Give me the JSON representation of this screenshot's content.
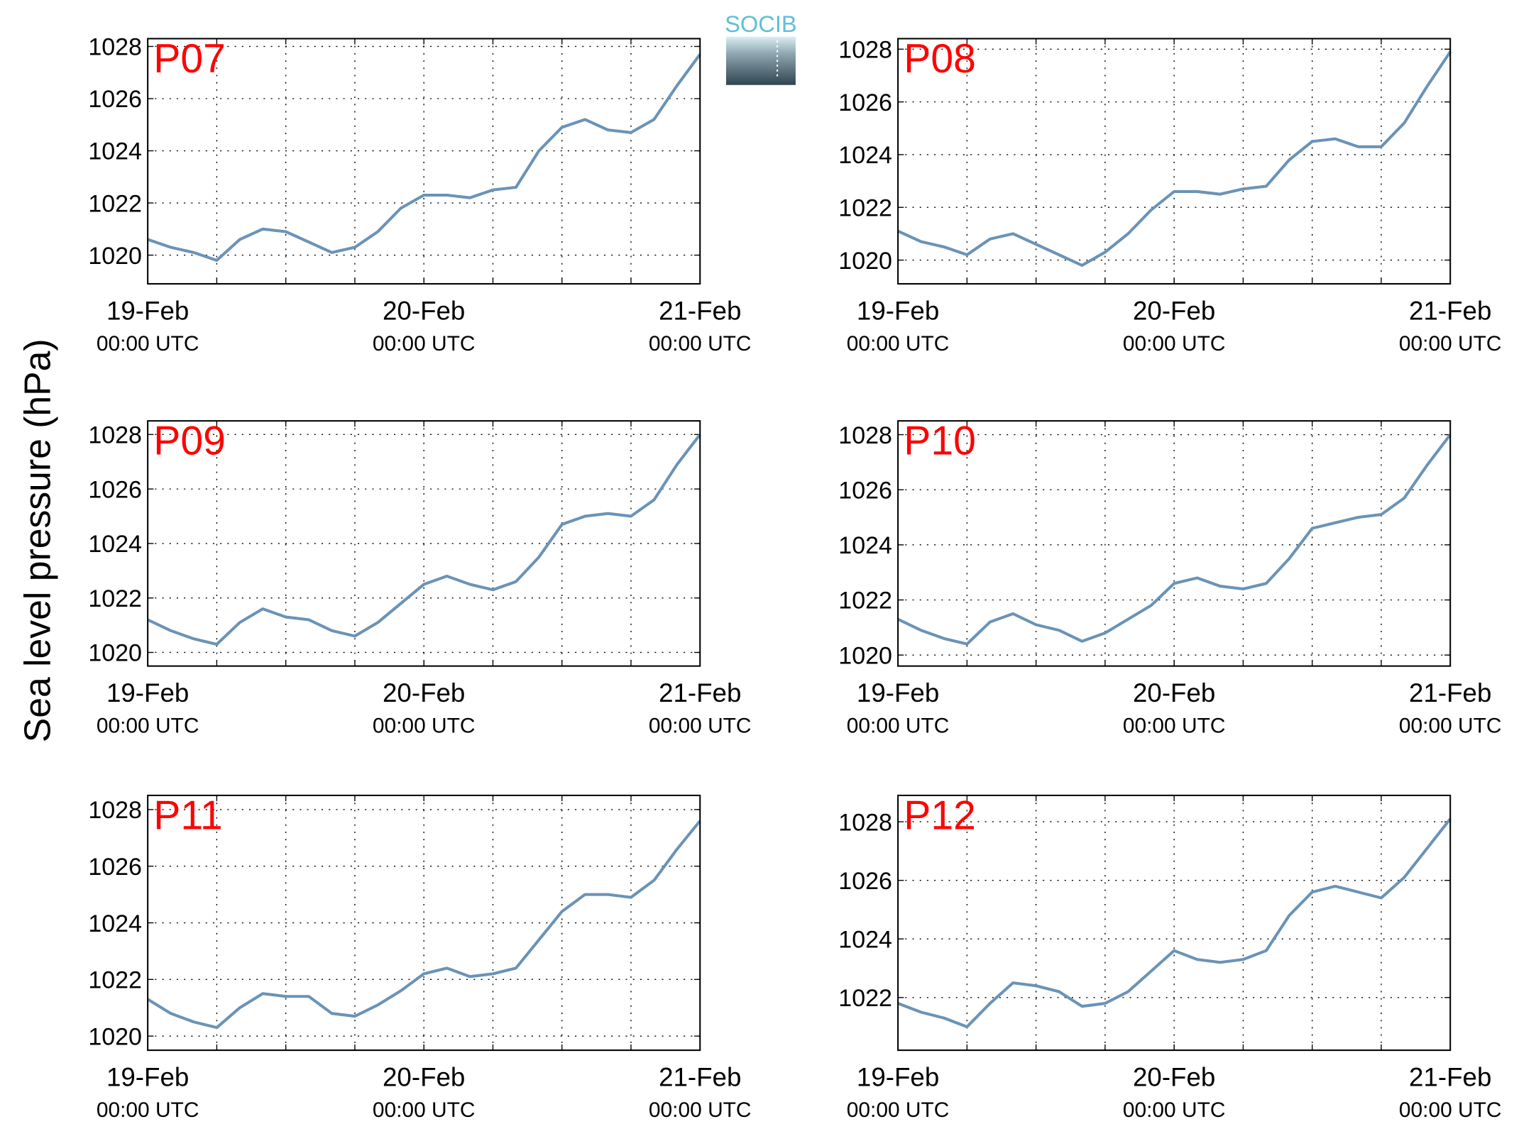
{
  "ylabel": "Sea level pressure (hPa)",
  "logo": "SOCIB",
  "chart_data": [
    {
      "type": "line",
      "title": "P07",
      "x": [
        0,
        2,
        4,
        6,
        8,
        10,
        12,
        14,
        16,
        18,
        20,
        22,
        24,
        26,
        28,
        30,
        32,
        34,
        36,
        38,
        40,
        42,
        44,
        46,
        48
      ],
      "series": [
        {
          "color": "#6a93b6",
          "values": [
            1020.6,
            1020.3,
            1020.1,
            1019.8,
            1020.6,
            1021.0,
            1020.9,
            1020.5,
            1020.1,
            1020.3,
            1020.9,
            1021.8,
            1022.3,
            1022.3,
            1022.2,
            1022.5,
            1022.6,
            1024.0,
            1024.9,
            1025.2,
            1024.8,
            1024.7,
            1025.2,
            1026.5,
            1027.7
          ]
        }
      ],
      "xlim": [
        0,
        48
      ],
      "xticks": [
        {
          "value": 0,
          "label": "19-Feb"
        },
        {
          "value": 24,
          "label": "20-Feb"
        },
        {
          "value": 48,
          "label": "21-Feb"
        }
      ],
      "xtick_times": [
        "00:00 UTC",
        "00:00 UTC",
        "00:00 UTC"
      ],
      "xgrid_values": [
        6,
        12,
        18,
        24,
        30,
        36,
        42
      ],
      "ylim": [
        1018.9,
        1028.3
      ],
      "yticks": [
        1020,
        1022,
        1024,
        1026,
        1028
      ],
      "grid": true
    },
    {
      "type": "line",
      "title": "P08",
      "x": [
        0,
        2,
        4,
        6,
        8,
        10,
        12,
        14,
        16,
        18,
        20,
        22,
        24,
        26,
        28,
        30,
        32,
        34,
        36,
        38,
        40,
        42,
        44,
        46,
        48
      ],
      "series": [
        {
          "color": "#6a93b6",
          "values": [
            1021.1,
            1020.7,
            1020.5,
            1020.2,
            1020.8,
            1021.0,
            1020.6,
            1020.2,
            1019.8,
            1020.3,
            1021.0,
            1021.9,
            1022.6,
            1022.6,
            1022.5,
            1022.7,
            1022.8,
            1023.8,
            1024.5,
            1024.6,
            1024.3,
            1024.3,
            1025.2,
            1026.6,
            1027.9
          ]
        }
      ],
      "xlim": [
        0,
        48
      ],
      "xticks": [
        {
          "value": 0,
          "label": "19-Feb"
        },
        {
          "value": 24,
          "label": "20-Feb"
        },
        {
          "value": 48,
          "label": "21-Feb"
        }
      ],
      "xtick_times": [
        "00:00 UTC",
        "00:00 UTC",
        "00:00 UTC"
      ],
      "xgrid_values": [
        6,
        12,
        18,
        24,
        30,
        36,
        42
      ],
      "ylim": [
        1019.1,
        1028.4
      ],
      "yticks": [
        1020,
        1022,
        1024,
        1026,
        1028
      ],
      "grid": true
    },
    {
      "type": "line",
      "title": "P09",
      "x": [
        0,
        2,
        4,
        6,
        8,
        10,
        12,
        14,
        16,
        18,
        20,
        22,
        24,
        26,
        28,
        30,
        32,
        34,
        36,
        38,
        40,
        42,
        44,
        46,
        48
      ],
      "series": [
        {
          "color": "#6a93b6",
          "values": [
            1021.2,
            1020.8,
            1020.5,
            1020.3,
            1021.1,
            1021.6,
            1021.3,
            1021.2,
            1020.8,
            1020.6,
            1021.1,
            1021.8,
            1022.5,
            1022.8,
            1022.5,
            1022.3,
            1022.6,
            1023.5,
            1024.7,
            1025.0,
            1025.1,
            1025.0,
            1025.6,
            1026.9,
            1028.0
          ]
        }
      ],
      "xlim": [
        0,
        48
      ],
      "xticks": [
        {
          "value": 0,
          "label": "19-Feb"
        },
        {
          "value": 24,
          "label": "20-Feb"
        },
        {
          "value": 48,
          "label": "21-Feb"
        }
      ],
      "xtick_times": [
        "00:00 UTC",
        "00:00 UTC",
        "00:00 UTC"
      ],
      "xgrid_values": [
        6,
        12,
        18,
        24,
        30,
        36,
        42
      ],
      "ylim": [
        1019.5,
        1028.5
      ],
      "yticks": [
        1020,
        1022,
        1024,
        1026,
        1028
      ],
      "grid": true
    },
    {
      "type": "line",
      "title": "P10",
      "x": [
        0,
        2,
        4,
        6,
        8,
        10,
        12,
        14,
        16,
        18,
        20,
        22,
        24,
        26,
        28,
        30,
        32,
        34,
        36,
        38,
        40,
        42,
        44,
        46,
        48
      ],
      "series": [
        {
          "color": "#6a93b6",
          "values": [
            1021.3,
            1020.9,
            1020.6,
            1020.4,
            1021.2,
            1021.5,
            1021.1,
            1020.9,
            1020.5,
            1020.8,
            1021.3,
            1021.8,
            1022.6,
            1022.8,
            1022.5,
            1022.4,
            1022.6,
            1023.5,
            1024.6,
            1024.8,
            1025.0,
            1025.1,
            1025.7,
            1026.9,
            1028.0
          ]
        }
      ],
      "xlim": [
        0,
        48
      ],
      "xticks": [
        {
          "value": 0,
          "label": "19-Feb"
        },
        {
          "value": 24,
          "label": "20-Feb"
        },
        {
          "value": 48,
          "label": "21-Feb"
        }
      ],
      "xtick_times": [
        "00:00 UTC",
        "00:00 UTC",
        "00:00 UTC"
      ],
      "xgrid_values": [
        6,
        12,
        18,
        24,
        30,
        36,
        42
      ],
      "ylim": [
        1019.6,
        1028.5
      ],
      "yticks": [
        1020,
        1022,
        1024,
        1026,
        1028
      ],
      "grid": true
    },
    {
      "type": "line",
      "title": "P11",
      "x": [
        0,
        2,
        4,
        6,
        8,
        10,
        12,
        14,
        16,
        18,
        20,
        22,
        24,
        26,
        28,
        30,
        32,
        34,
        36,
        38,
        40,
        42,
        44,
        46,
        48
      ],
      "series": [
        {
          "color": "#6a93b6",
          "values": [
            1021.3,
            1020.8,
            1020.5,
            1020.3,
            1021.0,
            1021.5,
            1021.4,
            1021.4,
            1020.8,
            1020.7,
            1021.1,
            1021.6,
            1022.2,
            1022.4,
            1022.1,
            1022.2,
            1022.4,
            1023.4,
            1024.4,
            1025.0,
            1025.0,
            1024.9,
            1025.5,
            1026.6,
            1027.6
          ]
        }
      ],
      "xlim": [
        0,
        48
      ],
      "xticks": [
        {
          "value": 0,
          "label": "19-Feb"
        },
        {
          "value": 24,
          "label": "20-Feb"
        },
        {
          "value": 48,
          "label": "21-Feb"
        }
      ],
      "xtick_times": [
        "00:00 UTC",
        "00:00 UTC",
        "00:00 UTC"
      ],
      "xgrid_values": [
        6,
        12,
        18,
        24,
        30,
        36,
        42
      ],
      "ylim": [
        1019.5,
        1028.5
      ],
      "yticks": [
        1020,
        1022,
        1024,
        1026,
        1028
      ],
      "grid": true
    },
    {
      "type": "line",
      "title": "P12",
      "x": [
        0,
        2,
        4,
        6,
        8,
        10,
        12,
        14,
        16,
        18,
        20,
        22,
        24,
        26,
        28,
        30,
        32,
        34,
        36,
        38,
        40,
        42,
        44,
        46,
        48
      ],
      "series": [
        {
          "color": "#6a93b6",
          "values": [
            1021.8,
            1021.5,
            1021.3,
            1021.0,
            1021.8,
            1022.5,
            1022.4,
            1022.2,
            1021.7,
            1021.8,
            1022.2,
            1022.9,
            1023.6,
            1023.3,
            1023.2,
            1023.3,
            1023.6,
            1024.8,
            1025.6,
            1025.8,
            1025.6,
            1025.4,
            1026.1,
            1027.1,
            1028.1
          ]
        }
      ],
      "xlim": [
        0,
        48
      ],
      "xticks": [
        {
          "value": 0,
          "label": "19-Feb"
        },
        {
          "value": 24,
          "label": "20-Feb"
        },
        {
          "value": 48,
          "label": "21-Feb"
        }
      ],
      "xtick_times": [
        "00:00 UTC",
        "00:00 UTC",
        "00:00 UTC"
      ],
      "xgrid_values": [
        6,
        12,
        18,
        24,
        30,
        36,
        42
      ],
      "ylim": [
        1020.2,
        1028.9
      ],
      "yticks": [
        1022,
        1024,
        1026,
        1028
      ],
      "grid": true
    }
  ]
}
